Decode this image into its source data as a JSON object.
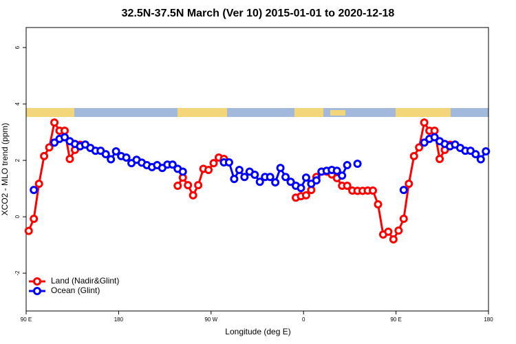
{
  "chart_data": {
    "type": "line",
    "title": "32.5N-37.5N March (Ver 10)   2015-01-01 to 2020-12-18",
    "x_label": "Longitude (deg E)",
    "y_label": "XCO2 - MLO trend (ppm)",
    "x": [
      92.5,
      97.5,
      102.5,
      107.5,
      112.5,
      117.5,
      122.5,
      127.5,
      132.5,
      137.5,
      142.5,
      147.5,
      152.5,
      157.5,
      162.5,
      167.5,
      172.5,
      177.5,
      182.5,
      187.5,
      192.5,
      197.5,
      202.5,
      207.5,
      212.5,
      217.5,
      222.5,
      227.5,
      232.5,
      237.5,
      242.5,
      247.5,
      252.5,
      257.5,
      262.5,
      267.5,
      272.5,
      277.5,
      282.5,
      287.5,
      292.5,
      297.5,
      302.5,
      307.5,
      312.5,
      317.5,
      322.5,
      327.5,
      332.5,
      337.5,
      342.5,
      347.5,
      352.5,
      357.5,
      362.5,
      367.5,
      372.5,
      377.5,
      382.5,
      387.5,
      392.5,
      397.5,
      402.5,
      407.5,
      412.5,
      417.5,
      422.5,
      427.5,
      432.5,
      437.5,
      442.5,
      447.5,
      452.5,
      457.5,
      462.5,
      467.5,
      472.5,
      477.5,
      482.5,
      487.5,
      492.5,
      497.5,
      502.5,
      507.5,
      512.5,
      517.5,
      522.5,
      527.5,
      532.5,
      537.5
    ],
    "series": [
      {
        "name": "Land (Nadir&Glint)",
        "color": "#ff0000",
        "values": [
          -0.5,
          -0.07,
          1.17,
          2.15,
          2.46,
          3.34,
          3.05,
          3.05,
          2.05,
          2.37,
          2.55,
          null,
          null,
          null,
          null,
          null,
          null,
          null,
          null,
          null,
          null,
          null,
          null,
          null,
          null,
          null,
          null,
          null,
          null,
          1.1,
          1.39,
          1.12,
          0.76,
          1.12,
          1.7,
          1.66,
          1.9,
          2.1,
          2.05,
          null,
          null,
          null,
          null,
          null,
          null,
          null,
          null,
          null,
          null,
          null,
          null,
          null,
          0.68,
          0.73,
          0.76,
          0.95,
          1.41,
          1.6,
          1.6,
          1.5,
          1.37,
          1.1,
          1.1,
          0.93,
          0.92,
          0.92,
          0.93,
          0.93,
          0.44,
          -0.63,
          -0.53,
          -0.8,
          -0.49,
          -0.07,
          1.17,
          2.15,
          2.46,
          3.34,
          3.05,
          3.05,
          2.05,
          2.37,
          2.55,
          null,
          null,
          null,
          null,
          null,
          null,
          null
        ]
      },
      {
        "name": "Ocean (Glint)",
        "color": "#0000ff",
        "values": [
          null,
          0.95,
          null,
          null,
          null,
          2.63,
          2.76,
          2.82,
          2.68,
          2.58,
          2.5,
          2.56,
          2.44,
          2.34,
          2.34,
          2.22,
          2.04,
          2.32,
          2.15,
          2.1,
          1.9,
          2.02,
          1.92,
          1.83,
          1.76,
          1.83,
          1.73,
          1.85,
          1.85,
          1.7,
          1.6,
          null,
          null,
          null,
          null,
          null,
          null,
          null,
          1.93,
          1.93,
          1.34,
          1.66,
          1.41,
          1.6,
          1.49,
          1.24,
          1.41,
          1.41,
          1.22,
          1.73,
          1.41,
          1.24,
          1.1,
          1.02,
          1.39,
          1.17,
          1.29,
          1.6,
          1.63,
          1.66,
          1.63,
          1.46,
          1.83,
          null,
          1.88,
          null,
          null,
          null,
          null,
          null,
          null,
          null,
          null,
          0.95,
          null,
          null,
          null,
          2.63,
          2.76,
          2.82,
          2.68,
          2.58,
          2.5,
          2.56,
          2.44,
          2.34,
          2.34,
          2.22,
          2.04,
          2.32
        ]
      }
    ],
    "xlim": [
      90,
      540
    ],
    "xticks": [
      {
        "value": 90,
        "label": "90 E"
      },
      180,
      {
        "value": 270,
        "label": "90 W"
      },
      {
        "value": 360,
        "label": "0"
      },
      {
        "value": 450,
        "label": "90 E"
      },
      {
        "value": 540,
        "label": "180"
      }
    ],
    "ylim": [
      -3.34,
      6.71
    ],
    "yticks": [
      -2,
      0,
      2,
      4,
      6
    ],
    "grid": false,
    "legend": "bottom-left"
  }
}
